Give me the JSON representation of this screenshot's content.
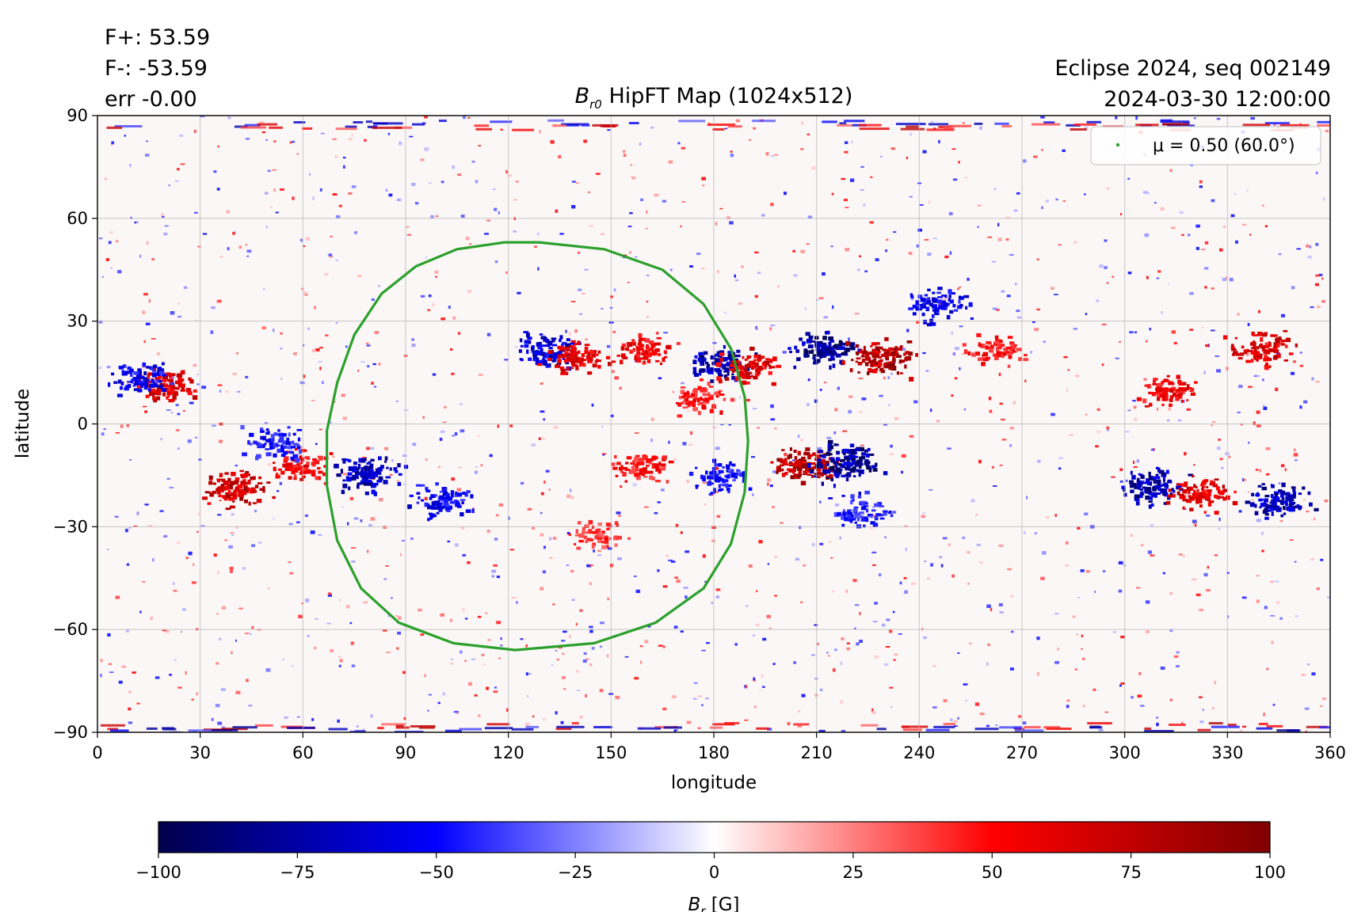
{
  "chart_data": {
    "type": "heatmap",
    "title": "HipFT Map (1024x512)",
    "title_symbol": "B",
    "title_symbol_subscript": "r0",
    "xlabel": "longitude",
    "ylabel": "latitude",
    "xlim": [
      0,
      360
    ],
    "ylim": [
      -90,
      90
    ],
    "xticks": [
      0,
      30,
      60,
      90,
      120,
      150,
      180,
      210,
      240,
      270,
      300,
      330,
      360
    ],
    "yticks": [
      -90,
      -60,
      -30,
      0,
      30,
      60,
      90
    ],
    "xtick_labels": [
      "0",
      "30",
      "60",
      "90",
      "120",
      "150",
      "180",
      "210",
      "240",
      "270",
      "300",
      "330",
      "360"
    ],
    "ytick_labels": [
      "−90",
      "−60",
      "−30",
      "0",
      "30",
      "60",
      "90"
    ],
    "grid": true,
    "legend_position": "top-right",
    "legend": {
      "label": "μ = 0.50 (60.0°)",
      "color": "#2ca02c"
    },
    "contour_mu_0_5": {
      "lon": [
        129,
        148,
        165,
        177,
        185,
        189,
        190,
        189,
        185,
        177,
        163,
        145,
        122,
        104,
        88,
        77,
        70,
        67,
        67,
        70,
        75,
        83,
        93,
        105,
        119,
        129
      ],
      "lat": [
        53,
        51,
        45,
        35,
        22,
        8,
        -5,
        -20,
        -35,
        -48,
        -58,
        -64,
        -66,
        -64,
        -58,
        -48,
        -34,
        -18,
        -2,
        12,
        26,
        38,
        46,
        51,
        53,
        53
      ]
    },
    "colorbar": {
      "label": "B_r [G]",
      "label_symbol": "B",
      "label_subscript": "r",
      "label_unit": "[G]",
      "range": [
        -100,
        100
      ],
      "ticks": [
        -100,
        -75,
        -50,
        -25,
        0,
        25,
        50,
        75,
        100
      ],
      "tick_labels": [
        "−100",
        "−75",
        "−50",
        "−25",
        "0",
        "25",
        "50",
        "75",
        "100"
      ],
      "colormap": "seismic",
      "colors": [
        "#00004c",
        "#0000ff",
        "#ffffff",
        "#ff0000",
        "#800000"
      ]
    },
    "active_regions": [
      {
        "lon": 130,
        "lat": 22,
        "sign": -1,
        "strength": 0.8
      },
      {
        "lon": 140,
        "lat": 20,
        "sign": 1,
        "strength": 0.8
      },
      {
        "lon": 182,
        "lat": 18,
        "sign": -1,
        "strength": 0.9
      },
      {
        "lon": 190,
        "lat": 17,
        "sign": 1,
        "strength": 0.8
      },
      {
        "lon": 212,
        "lat": 22,
        "sign": -1,
        "strength": 1.0
      },
      {
        "lon": 228,
        "lat": 20,
        "sign": 1,
        "strength": 1.0
      },
      {
        "lon": 206,
        "lat": -12,
        "sign": 1,
        "strength": 1.0
      },
      {
        "lon": 218,
        "lat": -11,
        "sign": -1,
        "strength": 1.0
      },
      {
        "lon": 78,
        "lat": -14,
        "sign": -1,
        "strength": 0.9
      },
      {
        "lon": 40,
        "lat": -18,
        "sign": 1,
        "strength": 0.9
      },
      {
        "lon": 20,
        "lat": 12,
        "sign": 1,
        "strength": 0.8
      },
      {
        "lon": 12,
        "lat": 14,
        "sign": -1,
        "strength": 0.7
      },
      {
        "lon": 100,
        "lat": -22,
        "sign": -1,
        "strength": 0.7
      },
      {
        "lon": 308,
        "lat": -18,
        "sign": -1,
        "strength": 0.9
      },
      {
        "lon": 322,
        "lat": -20,
        "sign": 1,
        "strength": 0.8
      },
      {
        "lon": 345,
        "lat": -22,
        "sign": -1,
        "strength": 0.9
      },
      {
        "lon": 340,
        "lat": 22,
        "sign": 1,
        "strength": 0.8
      },
      {
        "lon": 312,
        "lat": 10,
        "sign": 1,
        "strength": 0.7
      },
      {
        "lon": 245,
        "lat": 35,
        "sign": -1,
        "strength": 0.7
      },
      {
        "lon": 160,
        "lat": 22,
        "sign": 1,
        "strength": 0.7
      },
      {
        "lon": 175,
        "lat": 8,
        "sign": 1,
        "strength": 0.6
      },
      {
        "lon": 158,
        "lat": -12,
        "sign": 1,
        "strength": 0.6
      },
      {
        "lon": 222,
        "lat": -25,
        "sign": -1,
        "strength": 0.6
      },
      {
        "lon": 262,
        "lat": 22,
        "sign": 1,
        "strength": 0.6
      },
      {
        "lon": 182,
        "lat": -15,
        "sign": -1,
        "strength": 0.6
      },
      {
        "lon": 60,
        "lat": -12,
        "sign": 1,
        "strength": 0.7
      },
      {
        "lon": 52,
        "lat": -5,
        "sign": -1,
        "strength": 0.6
      },
      {
        "lon": 145,
        "lat": -32,
        "sign": 1,
        "strength": 0.5
      }
    ]
  },
  "header": {
    "f_plus": "F+: 53.59",
    "f_minus": "F-: -53.59",
    "err": "err -0.00",
    "seq": "Eclipse 2024, seq 002149",
    "datetime": "2024-03-30 12:00:00"
  }
}
